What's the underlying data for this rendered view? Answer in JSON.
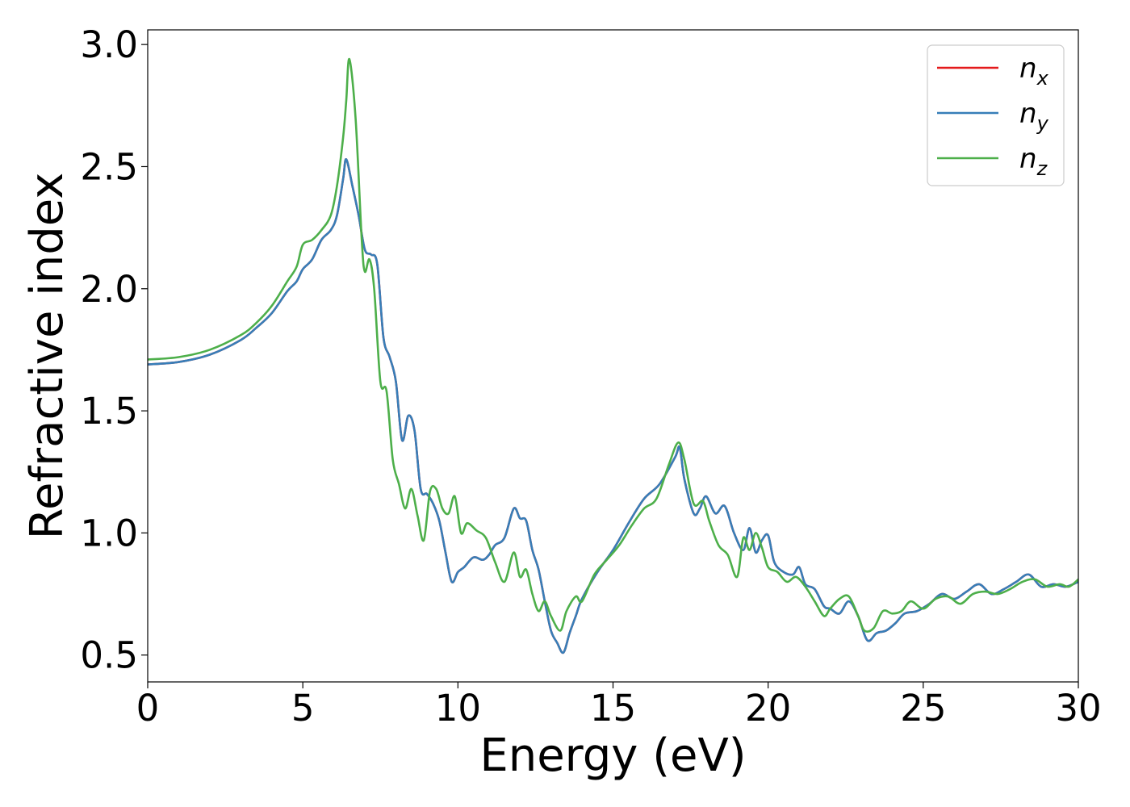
{
  "chart_data": {
    "type": "line",
    "xlabel": "Energy (eV)",
    "ylabel": "Refractive index",
    "xlim": [
      0,
      30
    ],
    "ylim": [
      0.39,
      3.06
    ],
    "xticks": [
      0,
      5,
      10,
      15,
      20,
      25,
      30
    ],
    "xtick_labels": [
      "0",
      "5",
      "10",
      "15",
      "20",
      "25",
      "30"
    ],
    "yticks": [
      0.5,
      1.0,
      1.5,
      2.0,
      2.5,
      3.0
    ],
    "ytick_labels": [
      "0.5",
      "1.0",
      "1.5",
      "2.0",
      "2.5",
      "3.0"
    ],
    "grid": false,
    "legend_position": "top-right",
    "colors": {
      "red": "#e41a1c",
      "blue": "#377eb8",
      "green": "#4daf4a"
    },
    "series": [
      {
        "name": "n_x",
        "label_main": "n",
        "label_sub": "x",
        "color": "#e41a1c",
        "x": [
          0,
          1,
          2,
          3,
          3.5,
          4,
          4.5,
          4.8,
          5.0,
          5.3,
          5.6,
          5.9,
          6.1,
          6.3,
          6.4,
          6.6,
          6.8,
          7.0,
          7.2,
          7.4,
          7.6,
          7.8,
          8.0,
          8.2,
          8.4,
          8.6,
          8.8,
          9.0,
          9.2,
          9.4,
          9.6,
          9.8,
          10.0,
          10.2,
          10.5,
          10.8,
          11.0,
          11.2,
          11.5,
          11.8,
          12.0,
          12.2,
          12.4,
          12.6,
          12.8,
          13.0,
          13.2,
          13.4,
          13.6,
          13.8,
          14.0,
          14.5,
          15.0,
          15.5,
          16.0,
          16.5,
          17.0,
          17.15,
          17.3,
          17.6,
          17.8,
          18.0,
          18.3,
          18.6,
          18.9,
          19.2,
          19.4,
          19.6,
          19.8,
          20.0,
          20.2,
          20.5,
          20.8,
          21.0,
          21.2,
          21.5,
          21.8,
          22.0,
          22.3,
          22.6,
          22.9,
          23.2,
          23.5,
          23.8,
          24.1,
          24.4,
          24.8,
          25.2,
          25.6,
          26.0,
          26.4,
          26.8,
          27.2,
          27.6,
          28.0,
          28.4,
          28.8,
          29.2,
          29.6,
          30.0
        ],
        "y": [
          1.69,
          1.7,
          1.73,
          1.79,
          1.84,
          1.9,
          1.99,
          2.03,
          2.08,
          2.12,
          2.2,
          2.24,
          2.3,
          2.45,
          2.53,
          2.42,
          2.3,
          2.16,
          2.14,
          2.1,
          1.8,
          1.72,
          1.62,
          1.38,
          1.48,
          1.42,
          1.18,
          1.16,
          1.12,
          1.05,
          0.92,
          0.8,
          0.84,
          0.86,
          0.9,
          0.89,
          0.91,
          0.95,
          0.98,
          1.1,
          1.06,
          1.05,
          0.93,
          0.85,
          0.72,
          0.6,
          0.55,
          0.51,
          0.59,
          0.66,
          0.73,
          0.84,
          0.93,
          1.04,
          1.14,
          1.2,
          1.31,
          1.35,
          1.22,
          1.08,
          1.1,
          1.15,
          1.08,
          1.11,
          1.0,
          0.93,
          1.02,
          0.92,
          0.97,
          0.99,
          0.88,
          0.84,
          0.83,
          0.86,
          0.79,
          0.77,
          0.7,
          0.69,
          0.67,
          0.72,
          0.66,
          0.56,
          0.59,
          0.6,
          0.63,
          0.67,
          0.68,
          0.71,
          0.75,
          0.73,
          0.76,
          0.79,
          0.75,
          0.77,
          0.8,
          0.83,
          0.78,
          0.79,
          0.78,
          0.8
        ]
      },
      {
        "name": "n_y",
        "label_main": "n",
        "label_sub": "y",
        "color": "#377eb8",
        "x": [
          0,
          1,
          2,
          3,
          3.5,
          4,
          4.5,
          4.8,
          5.0,
          5.3,
          5.6,
          5.9,
          6.1,
          6.3,
          6.4,
          6.6,
          6.8,
          7.0,
          7.2,
          7.4,
          7.6,
          7.8,
          8.0,
          8.2,
          8.4,
          8.6,
          8.8,
          9.0,
          9.2,
          9.4,
          9.6,
          9.8,
          10.0,
          10.2,
          10.5,
          10.8,
          11.0,
          11.2,
          11.5,
          11.8,
          12.0,
          12.2,
          12.4,
          12.6,
          12.8,
          13.0,
          13.2,
          13.4,
          13.6,
          13.8,
          14.0,
          14.5,
          15.0,
          15.5,
          16.0,
          16.5,
          17.0,
          17.15,
          17.3,
          17.6,
          17.8,
          18.0,
          18.3,
          18.6,
          18.9,
          19.2,
          19.4,
          19.6,
          19.8,
          20.0,
          20.2,
          20.5,
          20.8,
          21.0,
          21.2,
          21.5,
          21.8,
          22.0,
          22.3,
          22.6,
          22.9,
          23.2,
          23.5,
          23.8,
          24.1,
          24.4,
          24.8,
          25.2,
          25.6,
          26.0,
          26.4,
          26.8,
          27.2,
          27.6,
          28.0,
          28.4,
          28.8,
          29.2,
          29.6,
          30.0
        ],
        "y": [
          1.69,
          1.7,
          1.73,
          1.79,
          1.84,
          1.9,
          1.99,
          2.03,
          2.08,
          2.12,
          2.2,
          2.24,
          2.3,
          2.45,
          2.53,
          2.42,
          2.3,
          2.16,
          2.14,
          2.1,
          1.8,
          1.72,
          1.62,
          1.38,
          1.48,
          1.42,
          1.18,
          1.16,
          1.12,
          1.05,
          0.92,
          0.8,
          0.84,
          0.86,
          0.9,
          0.89,
          0.91,
          0.95,
          0.98,
          1.1,
          1.06,
          1.05,
          0.93,
          0.85,
          0.72,
          0.6,
          0.55,
          0.51,
          0.59,
          0.66,
          0.73,
          0.84,
          0.93,
          1.04,
          1.14,
          1.2,
          1.31,
          1.35,
          1.22,
          1.08,
          1.1,
          1.15,
          1.08,
          1.11,
          1.0,
          0.93,
          1.02,
          0.92,
          0.97,
          0.99,
          0.88,
          0.84,
          0.83,
          0.86,
          0.79,
          0.77,
          0.7,
          0.69,
          0.67,
          0.72,
          0.66,
          0.56,
          0.59,
          0.6,
          0.63,
          0.67,
          0.68,
          0.71,
          0.75,
          0.73,
          0.76,
          0.79,
          0.75,
          0.77,
          0.8,
          0.83,
          0.78,
          0.79,
          0.78,
          0.8
        ]
      },
      {
        "name": "n_z",
        "label_main": "n",
        "label_sub": "z",
        "color": "#4daf4a",
        "x": [
          0,
          1,
          2,
          3,
          3.5,
          4,
          4.5,
          4.8,
          5.0,
          5.3,
          5.6,
          5.9,
          6.1,
          6.3,
          6.4,
          6.5,
          6.7,
          6.9,
          7.0,
          7.15,
          7.3,
          7.5,
          7.7,
          7.9,
          8.1,
          8.3,
          8.5,
          8.7,
          8.9,
          9.1,
          9.3,
          9.5,
          9.7,
          9.9,
          10.1,
          10.3,
          10.6,
          10.9,
          11.2,
          11.5,
          11.8,
          12.0,
          12.2,
          12.4,
          12.6,
          12.8,
          13.0,
          13.3,
          13.5,
          13.8,
          14.0,
          14.4,
          14.8,
          15.2,
          15.6,
          16.0,
          16.4,
          16.8,
          17.1,
          17.3,
          17.6,
          17.9,
          18.1,
          18.4,
          18.7,
          19.0,
          19.2,
          19.4,
          19.6,
          19.8,
          20.0,
          20.3,
          20.6,
          20.9,
          21.2,
          21.5,
          21.8,
          22.0,
          22.3,
          22.6,
          22.9,
          23.1,
          23.4,
          23.7,
          24.0,
          24.3,
          24.6,
          25.0,
          25.4,
          25.8,
          26.2,
          26.6,
          27.0,
          27.4,
          27.8,
          28.2,
          28.6,
          29.0,
          29.4,
          29.7,
          30.0
        ],
        "y": [
          1.71,
          1.72,
          1.75,
          1.81,
          1.86,
          1.93,
          2.03,
          2.09,
          2.18,
          2.2,
          2.24,
          2.3,
          2.42,
          2.62,
          2.77,
          2.94,
          2.7,
          2.2,
          2.07,
          2.12,
          2.0,
          1.62,
          1.58,
          1.3,
          1.2,
          1.1,
          1.18,
          1.07,
          0.97,
          1.17,
          1.18,
          1.1,
          1.08,
          1.15,
          1.0,
          1.04,
          1.01,
          0.98,
          0.88,
          0.8,
          0.92,
          0.82,
          0.85,
          0.75,
          0.68,
          0.72,
          0.66,
          0.6,
          0.68,
          0.74,
          0.72,
          0.83,
          0.89,
          0.95,
          1.03,
          1.1,
          1.14,
          1.28,
          1.37,
          1.3,
          1.12,
          1.13,
          1.05,
          0.95,
          0.91,
          0.82,
          0.98,
          0.93,
          1.0,
          0.94,
          0.86,
          0.84,
          0.8,
          0.82,
          0.78,
          0.72,
          0.66,
          0.69,
          0.73,
          0.74,
          0.66,
          0.6,
          0.61,
          0.68,
          0.67,
          0.68,
          0.72,
          0.69,
          0.73,
          0.74,
          0.71,
          0.75,
          0.76,
          0.75,
          0.77,
          0.8,
          0.81,
          0.78,
          0.79,
          0.78,
          0.81
        ]
      }
    ]
  }
}
